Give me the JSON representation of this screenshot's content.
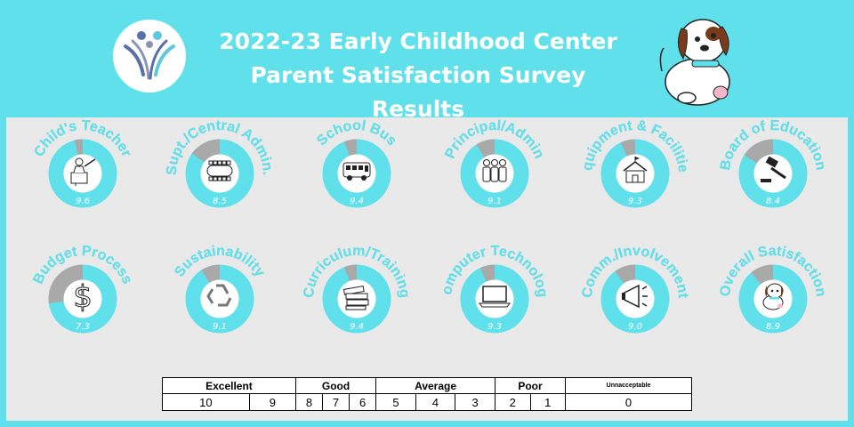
{
  "header": {
    "title_line1": "2022-23 Early Childhood Center",
    "title_line2": "Parent Satisfaction Survey Results"
  },
  "colors": {
    "background": "#5fe0ea",
    "panel": "#e9e9e9",
    "ring_filled": "#5fe0ea",
    "ring_empty": "#a9a9a9",
    "label_text": "#5fe0ea",
    "score_text": "#ffffff"
  },
  "chart_data": {
    "type": "pie",
    "max": 10,
    "items": [
      {
        "label": "Child's Teacher",
        "value": 9.6,
        "icon": "teacher-icon"
      },
      {
        "label": "Supt./Central Admin.",
        "value": 8.5,
        "icon": "conference-table-icon"
      },
      {
        "label": "School Bus",
        "value": 9.4,
        "icon": "bus-icon"
      },
      {
        "label": "Principal/Admin",
        "value": 9.1,
        "icon": "people-group-icon"
      },
      {
        "label": "Equipment & Facilities",
        "value": 9.3,
        "icon": "schoolhouse-icon"
      },
      {
        "label": "Board of Education",
        "value": 8.4,
        "icon": "gavel-icon"
      },
      {
        "label": "Budget Process",
        "value": 7.3,
        "icon": "dollar-icon"
      },
      {
        "label": "Sustainability",
        "value": 9.1,
        "icon": "recycle-icon"
      },
      {
        "label": "Curriculum/Training",
        "value": 9.4,
        "icon": "books-icon"
      },
      {
        "label": "Computer Technology",
        "value": 9.3,
        "icon": "laptop-icon"
      },
      {
        "label": "Comm./Involvement",
        "value": 9.0,
        "icon": "megaphone-icon"
      },
      {
        "label": "Overall Satisfaction",
        "value": 8.9,
        "icon": "puppy-icon"
      }
    ]
  },
  "scale": {
    "categories": [
      {
        "label": "Excellent",
        "span": 2
      },
      {
        "label": "Good",
        "span": 3
      },
      {
        "label": "Average",
        "span": 3
      },
      {
        "label": "Poor",
        "span": 2
      },
      {
        "label": "Unnacceptable",
        "span": 1
      }
    ],
    "numbers": [
      "10",
      "9",
      "8",
      "7",
      "6",
      "5",
      "4",
      "3",
      "2",
      "1",
      "0"
    ]
  }
}
